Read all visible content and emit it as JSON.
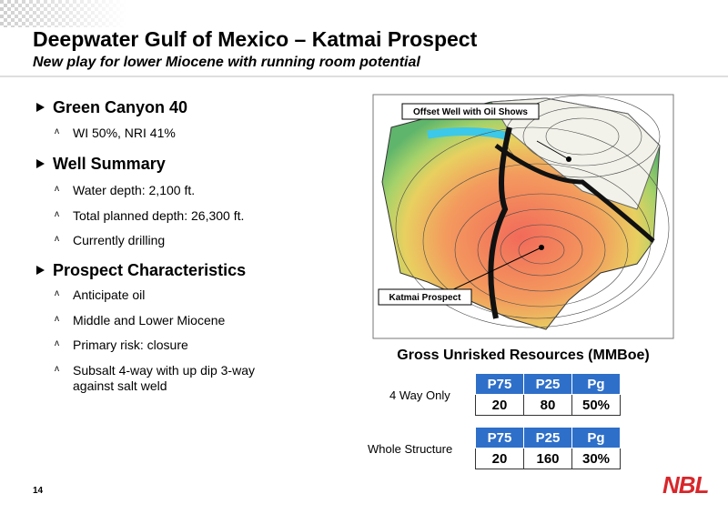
{
  "header": {
    "title": "Deepwater Gulf of Mexico – Katmai Prospect",
    "subtitle": "New play for lower Miocene with running room potential"
  },
  "sections": [
    {
      "heading": "Green Canyon 40",
      "bullets": [
        "WI 50%, NRI 41%"
      ]
    },
    {
      "heading": "Well Summary",
      "bullets": [
        "Water depth: 2,100 ft.",
        "Total planned depth: 26,300 ft.",
        "Currently drilling"
      ]
    },
    {
      "heading": "Prospect Characteristics",
      "bullets": [
        "Anticipate oil",
        "Middle and Lower Miocene",
        "Primary risk: closure",
        "Subsalt 4-way with up dip 3-way against salt weld"
      ]
    }
  ],
  "map": {
    "labels": [
      "Offset Well with Oil Shows",
      "Katmai Prospect"
    ]
  },
  "resources": {
    "title": "Gross Unrisked Resources (MMBoe)",
    "tables": [
      {
        "label": "4 Way Only",
        "header": [
          "P75",
          "P25",
          "Pg"
        ],
        "row": [
          "20",
          "80",
          "50%"
        ]
      },
      {
        "label": "Whole Structure",
        "header": [
          "P75",
          "P25",
          "Pg"
        ],
        "row": [
          "20",
          "160",
          "30%"
        ]
      }
    ]
  },
  "page_number": "14",
  "logo": "NBL"
}
